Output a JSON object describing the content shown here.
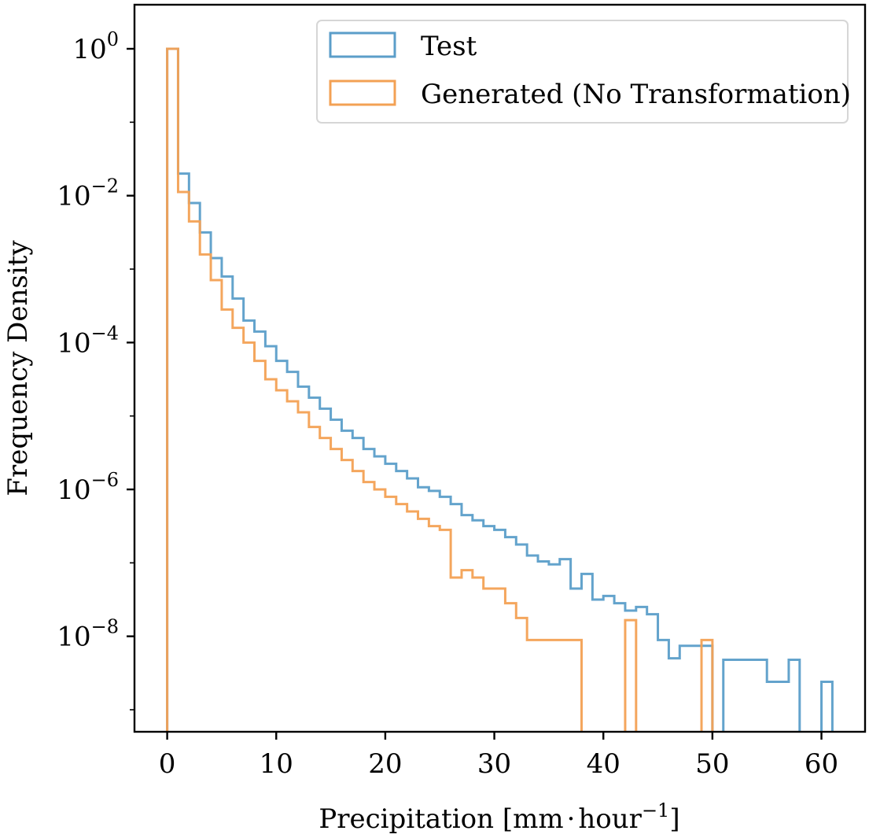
{
  "chart_data": {
    "type": "histogram",
    "xlabel": {
      "base": "Precipitation [mm",
      "dot": "·",
      "unit": "hour",
      "exp": "−1",
      "close": "]"
    },
    "ylabel": "Frequency Density",
    "xlim": [
      -3,
      64
    ],
    "ylim_log10": [
      -9.3,
      0.6
    ],
    "yscale": "log",
    "x_ticks": [
      0,
      10,
      20,
      30,
      40,
      50,
      60
    ],
    "y_ticks": [
      {
        "base": "10",
        "exp": "0",
        "value_log10": 0
      },
      {
        "base": "10",
        "exp": "−2",
        "value_log10": -2
      },
      {
        "base": "10",
        "exp": "−4",
        "value_log10": -4
      },
      {
        "base": "10",
        "exp": "−6",
        "value_log10": -6
      },
      {
        "base": "10",
        "exp": "−8",
        "value_log10": -8
      }
    ],
    "legend": {
      "position": "top-right"
    },
    "bin_edges": [
      0,
      1,
      2,
      3,
      4,
      5,
      6,
      7,
      8,
      9,
      10,
      11,
      12,
      13,
      14,
      15,
      16,
      17,
      18,
      19,
      20,
      21,
      22,
      23,
      24,
      25,
      26,
      27,
      28,
      29,
      30,
      31,
      32,
      33,
      34,
      35,
      36,
      37,
      38,
      39,
      40,
      41,
      42,
      43,
      44,
      45,
      46,
      47,
      48,
      49,
      50,
      51,
      52,
      53,
      54,
      55,
      56,
      57,
      58,
      59,
      60,
      61
    ],
    "series": [
      {
        "name": "Test",
        "color": "#5b9ec9",
        "log10_density": [
          0,
          -1.7,
          -2.1,
          -2.5,
          -2.85,
          -3.1,
          -3.4,
          -3.7,
          -3.85,
          -4.05,
          -4.25,
          -4.4,
          -4.6,
          -4.75,
          -4.9,
          -5.05,
          -5.2,
          -5.3,
          -5.45,
          -5.55,
          -5.65,
          -5.75,
          -5.85,
          -5.97,
          -6.02,
          -6.1,
          -6.2,
          -6.35,
          -6.42,
          -6.5,
          -6.55,
          -6.65,
          -6.75,
          -6.9,
          -6.98,
          -7.02,
          -6.95,
          -7.35,
          -7.15,
          -7.5,
          -7.45,
          -7.55,
          -7.65,
          -7.6,
          -7.7,
          -8.05,
          -8.3,
          -8.13,
          -8.13,
          -8.13,
          null,
          -8.32,
          -8.32,
          -8.32,
          -8.32,
          -8.62,
          -8.62,
          -8.32,
          null,
          null,
          -8.62
        ]
      },
      {
        "name": "Generated (No Transformation)",
        "color": "#f3a154",
        "log10_density": [
          0,
          -1.95,
          -2.35,
          -2.8,
          -3.15,
          -3.55,
          -3.8,
          -4.0,
          -4.25,
          -4.5,
          -4.65,
          -4.8,
          -4.95,
          -5.15,
          -5.3,
          -5.45,
          -5.6,
          -5.75,
          -5.9,
          -6.0,
          -6.1,
          -6.2,
          -6.3,
          -6.4,
          -6.5,
          -6.55,
          -7.2,
          -7.1,
          -7.2,
          -7.35,
          -7.35,
          -7.55,
          -7.75,
          -8.05,
          -8.05,
          -8.05,
          -8.05,
          -8.05,
          null,
          null,
          null,
          null,
          -7.78,
          null,
          null,
          null,
          null,
          null,
          null,
          -8.05,
          null
        ]
      }
    ]
  }
}
